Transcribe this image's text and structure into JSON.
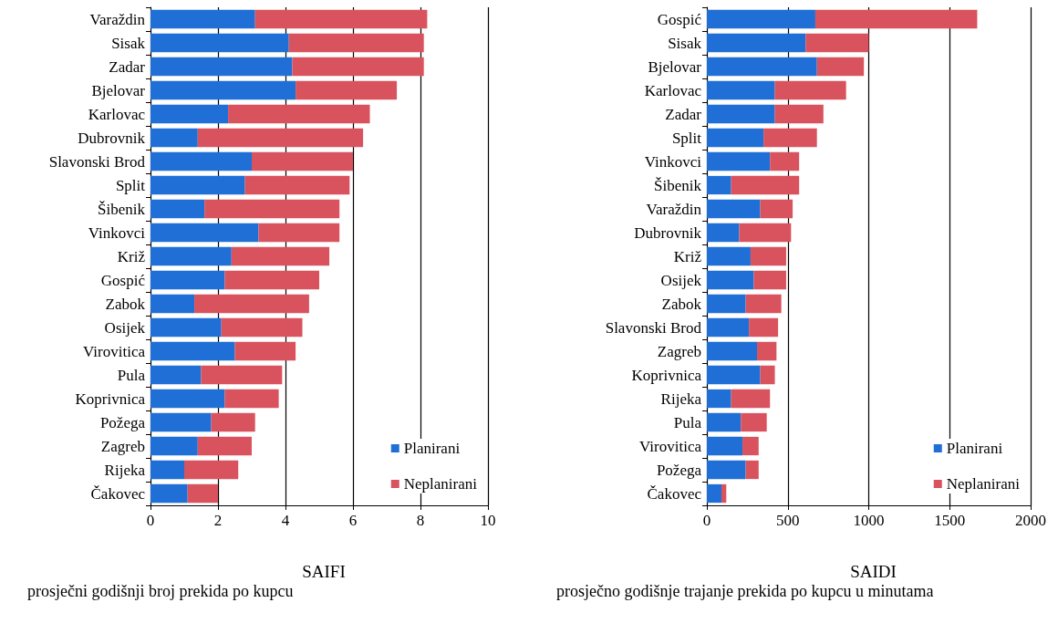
{
  "chart_data": [
    {
      "type": "bar",
      "orientation": "horizontal",
      "stacked": true,
      "title": "SAIFI",
      "subtitle": "prosječni godišnji broj prekida po kupcu",
      "categories": [
        "Varaždin",
        "Sisak",
        "Zadar",
        "Bjelovar",
        "Karlovac",
        "Dubrovnik",
        "Slavonski Brod",
        "Split",
        "Šibenik",
        "Vinkovci",
        "Križ",
        "Gospić",
        "Zabok",
        "Osijek",
        "Virovitica",
        "Pula",
        "Koprivnica",
        "Požega",
        "Zagreb",
        "Rijeka",
        "Čakovec"
      ],
      "series": [
        {
          "name": "Planirani",
          "color": "#1f6fd6",
          "values": [
            3.1,
            4.1,
            4.2,
            4.3,
            2.3,
            1.4,
            3.0,
            2.8,
            1.6,
            3.2,
            2.4,
            2.2,
            1.3,
            2.1,
            2.5,
            1.5,
            2.2,
            1.8,
            1.4,
            1.0,
            1.1
          ]
        },
        {
          "name": "Neplanirani",
          "color": "#d9535e",
          "values": [
            5.1,
            4.0,
            3.9,
            3.0,
            4.2,
            4.9,
            3.0,
            3.1,
            4.0,
            2.4,
            2.9,
            2.8,
            3.4,
            2.4,
            1.8,
            2.4,
            1.6,
            1.3,
            1.6,
            1.6,
            0.9
          ]
        }
      ],
      "xlim": [
        0,
        10
      ],
      "xticks": [
        0,
        2,
        4,
        6,
        8,
        10
      ],
      "grid": "x",
      "legend": "bottom right"
    },
    {
      "type": "bar",
      "orientation": "horizontal",
      "stacked": true,
      "title": "SAIDI",
      "subtitle": "prosječno godišnje trajanje prekida po kupcu u minutama",
      "categories": [
        "Gospić",
        "Sisak",
        "Bjelovar",
        "Karlovac",
        "Zadar",
        "Split",
        "Vinkovci",
        "Šibenik",
        "Varaždin",
        "Dubrovnik",
        "Križ",
        "Osijek",
        "Zabok",
        "Slavonski Brod",
        "Zagreb",
        "Koprivnica",
        "Rijeka",
        "Pula",
        "Virovitica",
        "Požega",
        "Čakovec"
      ],
      "series": [
        {
          "name": "Planirani",
          "color": "#1f6fd6",
          "values": [
            670,
            610,
            680,
            420,
            420,
            350,
            390,
            150,
            330,
            200,
            270,
            290,
            240,
            260,
            310,
            330,
            150,
            210,
            220,
            240,
            90
          ]
        },
        {
          "name": "Neplanirani",
          "color": "#d9535e",
          "values": [
            1000,
            390,
            290,
            440,
            300,
            330,
            180,
            420,
            200,
            320,
            220,
            200,
            220,
            180,
            120,
            90,
            240,
            160,
            100,
            80,
            30
          ]
        }
      ],
      "xlim": [
        0,
        2000
      ],
      "xticks": [
        0,
        500,
        1000,
        1500,
        2000
      ],
      "grid": "x",
      "legend": "bottom right"
    }
  ]
}
